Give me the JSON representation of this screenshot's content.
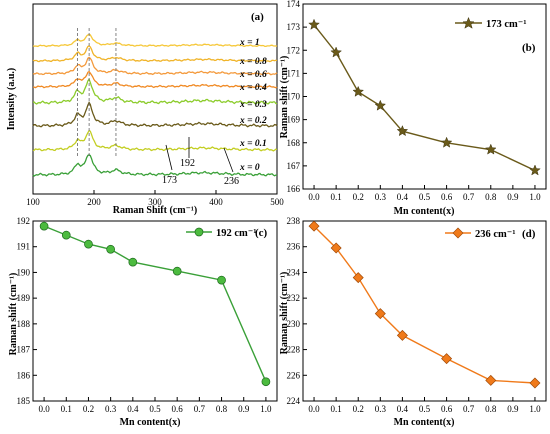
{
  "chart_data": [
    {
      "type": "line",
      "panel_label": "(a)",
      "xlabel": "Raman Shift (cm⁻¹)",
      "ylabel": "Intensity (a.u.)",
      "xlim": [
        100,
        500
      ],
      "xticks": [
        100,
        200,
        300,
        400,
        500
      ],
      "series": [
        {
          "name": "x = 0",
          "color": "#3aa038"
        },
        {
          "name": "x = 0.1",
          "color": "#c3ce22"
        },
        {
          "name": "x = 0.2",
          "color": "#6a5a1a"
        },
        {
          "name": "x = 0.3",
          "color": "#8ccc2c"
        },
        {
          "name": "x = 0.4",
          "color": "#f08a24"
        },
        {
          "name": "x = 0.6",
          "color": "#f49a3c"
        },
        {
          "name": "x = 0.8",
          "color": "#f0b42a"
        },
        {
          "name": "x = 1",
          "color": "#f6c83a"
        }
      ],
      "annotations": [
        "173",
        "192",
        "236"
      ],
      "dashed_lines_x": [
        173,
        192,
        236
      ]
    },
    {
      "type": "line",
      "panel_label": "(b)",
      "x": [
        0.0,
        0.1,
        0.2,
        0.3,
        0.4,
        0.6,
        0.8,
        1.0
      ],
      "series": [
        {
          "name": "173 cm⁻¹",
          "values": [
            173.1,
            171.9,
            170.2,
            169.6,
            168.5,
            168.0,
            167.7,
            166.8
          ]
        }
      ],
      "xlabel": "Mn content(x)",
      "ylabel": "Raman shift (cm⁻¹)",
      "xlim": [
        -0.05,
        1.05
      ],
      "ylim": [
        166,
        174
      ],
      "xticks": [
        "0.0",
        "0.1",
        "0.2",
        "0.3",
        "0.4",
        "0.5",
        "0.6",
        "0.7",
        "0.8",
        "0.9",
        "1.0"
      ],
      "yticks": [
        166,
        167,
        168,
        169,
        170,
        171,
        172,
        173,
        174
      ],
      "color": "#6a5a1a",
      "marker": "star"
    },
    {
      "type": "line",
      "panel_label": "(c)",
      "x": [
        0.0,
        0.1,
        0.2,
        0.3,
        0.4,
        0.6,
        0.8,
        1.0
      ],
      "series": [
        {
          "name": "192 cm⁻¹",
          "values": [
            191.8,
            191.45,
            191.1,
            190.9,
            190.4,
            190.05,
            189.7,
            185.75
          ]
        }
      ],
      "xlabel": "Mn content(x)",
      "ylabel": "Raman shift (cm⁻¹)",
      "xlim": [
        -0.05,
        1.05
      ],
      "ylim": [
        185,
        192
      ],
      "xticks": [
        "0.0",
        "0.1",
        "0.2",
        "0.3",
        "0.4",
        "0.5",
        "0.6",
        "0.7",
        "0.8",
        "0.9",
        "1.0"
      ],
      "yticks": [
        185,
        186,
        187,
        188,
        189,
        190,
        191,
        192
      ],
      "color": "#3aa038",
      "marker": "circle"
    },
    {
      "type": "line",
      "panel_label": "(d)",
      "x": [
        0.0,
        0.1,
        0.2,
        0.3,
        0.4,
        0.6,
        0.8,
        1.0
      ],
      "series": [
        {
          "name": "236 cm⁻¹",
          "values": [
            237.6,
            235.9,
            233.6,
            230.8,
            229.1,
            227.3,
            225.6,
            225.4
          ]
        }
      ],
      "xlabel": "Mn content(x)",
      "ylabel": "Raman shift (cm⁻¹)",
      "xlim": [
        -0.05,
        1.05
      ],
      "ylim": [
        224,
        238
      ],
      "xticks": [
        "0.0",
        "0.1",
        "0.2",
        "0.3",
        "0.4",
        "0.5",
        "0.6",
        "0.7",
        "0.8",
        "0.9",
        "1.0"
      ],
      "yticks": [
        224,
        226,
        228,
        230,
        232,
        234,
        236,
        238
      ],
      "color": "#f07a1a",
      "marker": "diamond"
    }
  ]
}
